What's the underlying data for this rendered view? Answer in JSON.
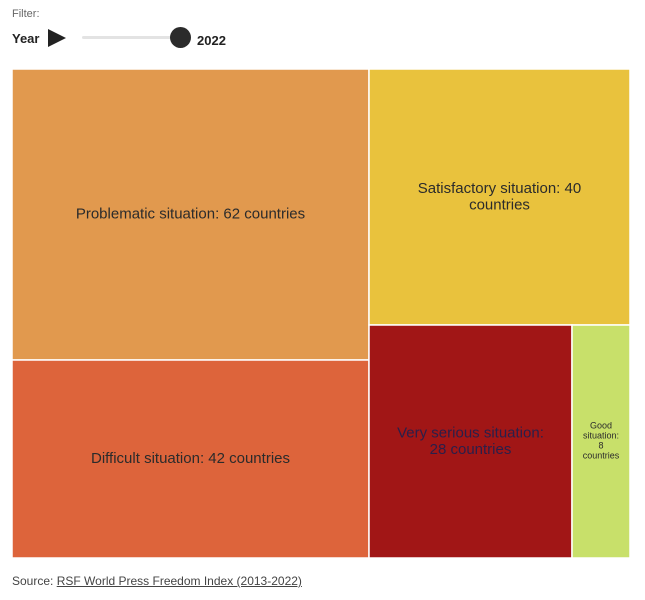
{
  "filter": {
    "label": "Filter:",
    "year_label": "Year",
    "year_value": "2022"
  },
  "chart_data": {
    "type": "treemap",
    "title": "",
    "categories": [
      "Problematic situation",
      "Difficult situation",
      "Satisfactory situation",
      "Very serious situation",
      "Good situation"
    ],
    "values": [
      62,
      42,
      40,
      28,
      8
    ],
    "unit": "countries",
    "labels": [
      "Problematic situation: 62 countries",
      "Difficult situation: 42 countries",
      "Satisfactory situation: 40 countries",
      "Very serious situation: 28 countries",
      "Good situation: 8 countries"
    ],
    "colors": [
      "#e1994e",
      "#dd643b",
      "#e9c23d",
      "#a11616",
      "#c8e06a"
    ],
    "label_colors": [
      "#2b2b2b",
      "#2b2b2b",
      "#2b2b2b",
      "#2a1f4a",
      "#2b2b2b"
    ]
  },
  "source": {
    "prefix": "Source: ",
    "link_text": "RSF World Press Freedom Index (2013-2022)"
  }
}
